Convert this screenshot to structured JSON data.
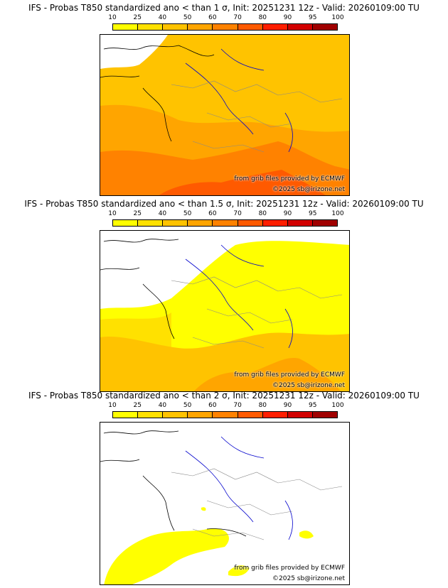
{
  "colorbar": {
    "ticks": [
      "10",
      "25",
      "40",
      "50",
      "60",
      "70",
      "80",
      "90",
      "95",
      "100"
    ],
    "colors": [
      "#ffff00",
      "#ffe100",
      "#ffc300",
      "#ffa500",
      "#ff8200",
      "#ff5a00",
      "#ff1e00",
      "#d20000",
      "#a00000",
      "#6e0000"
    ]
  },
  "land_color": "#ffffff",
  "water_line_color": "#0000cc",
  "panels": [
    {
      "title": "IFS - Probas T850  standardized ano < than 1 σ, Init: 20251231 12z - Valid: 20260109:00 TU",
      "credit_source": "from grib files provided by ECMWF",
      "credit_copyright": "©2025 sb@irizone.net",
      "field_levels": [
        "#ffc300",
        "#ffa500",
        "#ff8200",
        "#ff5a00"
      ]
    },
    {
      "title": "IFS - Probas T850  standardized ano < than 1.5 σ, Init: 20251231 12z - Valid: 20260109:00 TU",
      "credit_source": "from grib files provided by ECMWF",
      "credit_copyright": "©2025 sb@irizone.net",
      "field_levels": [
        "#ffff00",
        "#ffe100",
        "#ffc300",
        "#ffa500"
      ]
    },
    {
      "title": "IFS - Probas T850  standardized ano < than 2 σ, Init: 20251231 12z - Valid: 20260109:00 TU",
      "credit_source": "from grib files provided by ECMWF",
      "credit_copyright": "©2025 sb@irizone.net",
      "field_levels": [
        "#ffff00"
      ]
    }
  ]
}
